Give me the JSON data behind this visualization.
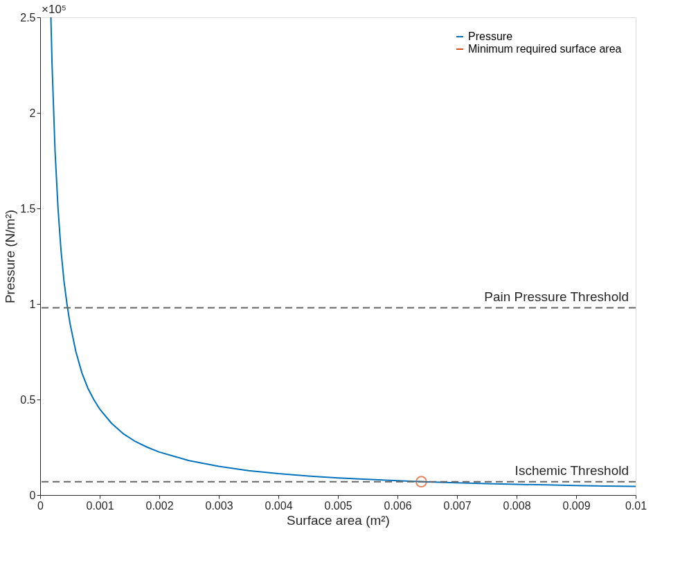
{
  "chart_data": {
    "type": "line",
    "xlabel": "Surface area (m²)",
    "ylabel": "Pressure (N/m²)",
    "xlim": [
      0,
      0.01
    ],
    "xticks": [
      0,
      0.001,
      0.002,
      0.003,
      0.004,
      0.005,
      0.006,
      0.007,
      0.008,
      0.009,
      0.01
    ],
    "ylim": [
      0,
      2.5
    ],
    "yticks": [
      0,
      0.5,
      1,
      1.5,
      2,
      2.5
    ],
    "annotations": [
      "×10⁵"
    ],
    "series": [
      {
        "name": "Pressure",
        "color": "#0072bd",
        "marker": "none",
        "x": [
          0.00018,
          0.0002,
          0.00025,
          0.0003,
          0.00035,
          0.0004,
          0.00045,
          0.0005,
          0.0006,
          0.0007,
          0.0008,
          0.0009,
          0.001,
          0.0012,
          0.0014,
          0.0016,
          0.0018,
          0.002,
          0.0025,
          0.003,
          0.0035,
          0.004,
          0.0045,
          0.005,
          0.0055,
          0.006,
          0.0065,
          0.007,
          0.0075,
          0.008,
          0.0085,
          0.009,
          0.0095,
          0.01
        ],
        "values": [
          2.5,
          2.25,
          1.8,
          1.5,
          1.28,
          1.12,
          1.0,
          0.9,
          0.75,
          0.64,
          0.56,
          0.5,
          0.45,
          0.375,
          0.32,
          0.28,
          0.25,
          0.225,
          0.18,
          0.15,
          0.128,
          0.112,
          0.1,
          0.09,
          0.082,
          0.075,
          0.069,
          0.064,
          0.06,
          0.056,
          0.053,
          0.05,
          0.047,
          0.045
        ]
      },
      {
        "name": "Minimum required surface area",
        "type": "scatter",
        "color": "#d95319",
        "marker": "circle",
        "x": [
          0.0064
        ],
        "values": [
          0.07
        ]
      }
    ],
    "ref_lines": [
      {
        "axis": "y",
        "value": 0.98,
        "label": "Pain Pressure Threshold",
        "color": "#666666",
        "line_style": "dashed"
      },
      {
        "axis": "y",
        "value": 0.07,
        "label": "Ischemic Threshold",
        "color": "#666666",
        "line_style": "dashed"
      }
    ],
    "legend": "top right",
    "grid": false
  }
}
